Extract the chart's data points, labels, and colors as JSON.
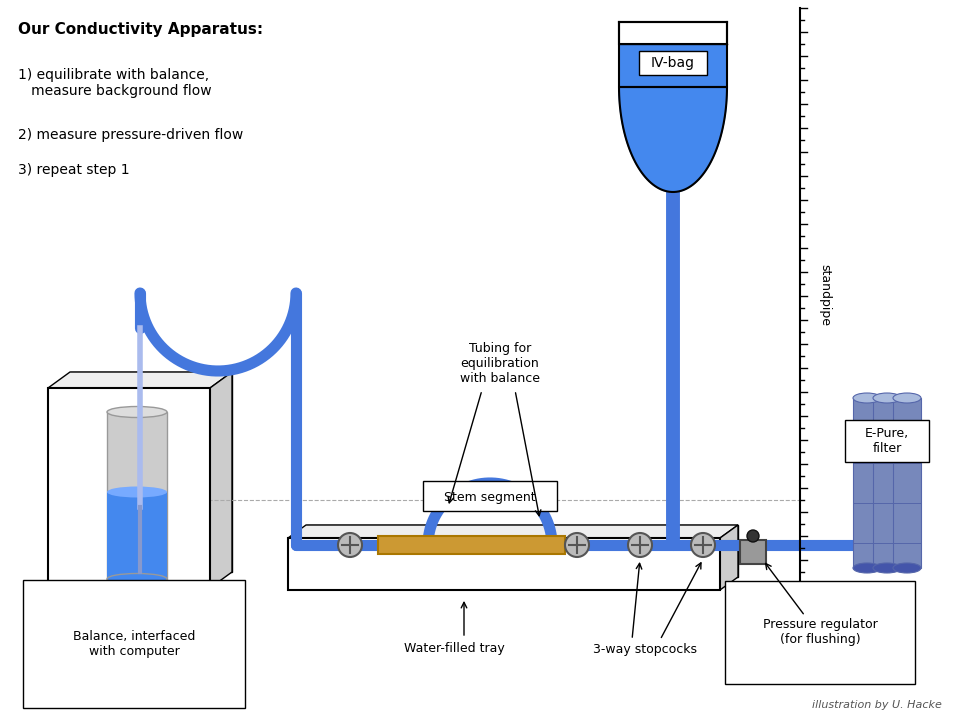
{
  "title": "Our Conductivity Apparatus:",
  "steps": [
    "1) equilibrate with balance,\n   measure background flow",
    "2) measure pressure-driven flow",
    "3) repeat step 1"
  ],
  "labels": {
    "iv_bag": "IV-bag",
    "balance": "Balance, interfaced\nwith computer",
    "water_tray": "Water-filled tray",
    "stopcocks": "3-way stopcocks",
    "pressure_reg": "Pressure regulator\n(for flushing)",
    "stem_segment": "Stem segment",
    "tubing": "Tubing for\nequilibration\nwith balance",
    "standpipe": "standpipe",
    "epure": "E-Pure,\nfilter",
    "credit": "illustration by U. Hacke"
  },
  "colors": {
    "blue_tube": "#4477DD",
    "blue_fill": "#4488EE",
    "blue_light": "#99AADD",
    "blue_filter": "#7788BB",
    "blue_filter_light": "#AABBDD",
    "gold": "#CC9933",
    "white": "#FFFFFF",
    "black": "#000000",
    "gray": "#AAAAAA",
    "gray_dark": "#666666",
    "gray_light": "#DDDDDD",
    "gray_box": "#EEEEEE"
  }
}
